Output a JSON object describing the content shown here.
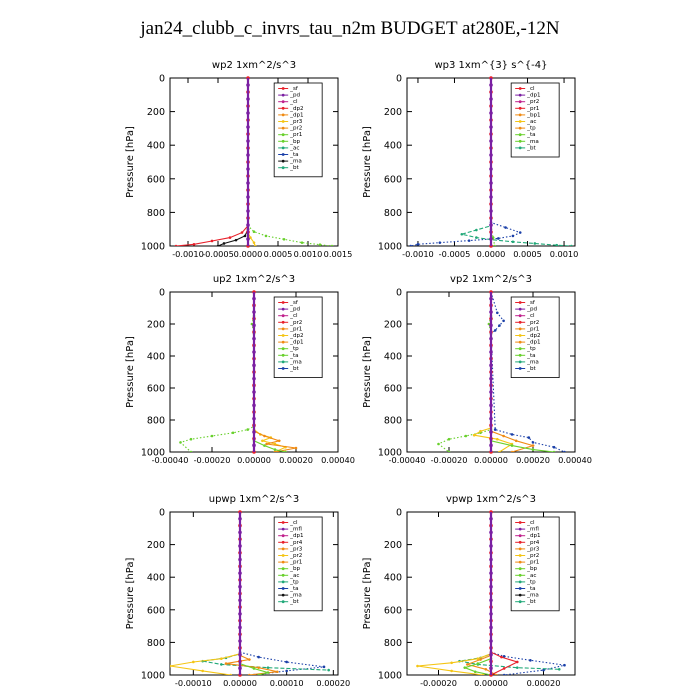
{
  "page": {
    "title": "jan24_clubb_c_invrs_tau_n2m  BUDGET at280E,-12N"
  },
  "colors": {
    "red": "#e8202a",
    "purple": "#7a1fa2",
    "orange": "#f08a12",
    "yellow": "#f4c515",
    "green": "#68d02c",
    "teal": "#20a878",
    "blue": "#1a3fa8",
    "cyan": "#29b8d8",
    "black": "#111111",
    "magenta": "#c0208c"
  },
  "chart_data": [
    {
      "type": "line",
      "title": "wp2   1xm^2/s^3",
      "ylabel": "Pressure  [hPa]",
      "ylim": [
        1000,
        0
      ],
      "xlim": [
        -0.0013,
        0.0015
      ],
      "xticks": [
        -0.001,
        -0.0005,
        0.0,
        0.0005,
        0.001,
        0.0015
      ],
      "xtick_labels": [
        "-0.0010",
        "-0.0005",
        "0.0000",
        "0.0005",
        "0.0010",
        "0.0015"
      ],
      "yticks": [
        0,
        200,
        400,
        600,
        800,
        1000
      ],
      "legend": [
        "_sf",
        "_pd",
        "_cl",
        "_dp2",
        "_dp1",
        "_pr3",
        "_pr2",
        "_pr1",
        "_bp",
        "_ac",
        "_ta",
        "_ma",
        "_bt"
      ],
      "series": [
        {
          "name": "_pr1",
          "color": "green",
          "style": "dot",
          "x": [
            0,
            0,
            0.0001,
            0.0003,
            0.0006,
            0.0009,
            0.0012,
            0.0014
          ],
          "y": [
            0,
            880,
            915,
            940,
            960,
            980,
            992,
            1000
          ]
        },
        {
          "name": "_dp1",
          "color": "red",
          "style": "line",
          "x": [
            0,
            0,
            -0.0001,
            -0.0003,
            -0.0006,
            -0.0009,
            -0.0012
          ],
          "y": [
            0,
            880,
            920,
            950,
            970,
            990,
            1000
          ]
        },
        {
          "name": "_ta",
          "color": "black",
          "style": "line",
          "x": [
            0,
            0,
            -5e-05,
            -0.0002,
            -0.0004,
            -0.0005
          ],
          "y": [
            0,
            900,
            940,
            965,
            985,
            1000
          ]
        },
        {
          "name": "_bp",
          "color": "yellow",
          "style": "line",
          "x": [
            0,
            0,
            4e-05,
            0.0001,
            0.00012
          ],
          "y": [
            0,
            920,
            950,
            980,
            1000
          ]
        },
        {
          "name": "_pd",
          "color": "purple",
          "style": "line",
          "x": [
            0,
            0,
            0
          ],
          "y": [
            0,
            500,
            1000
          ]
        }
      ]
    },
    {
      "type": "line",
      "title": "wp3   1xm^{3} s^{-4}",
      "ylabel": "Pressure  [hPa]",
      "ylim": [
        1000,
        0
      ],
      "xlim": [
        -0.00115,
        0.00115
      ],
      "xticks": [
        -0.001,
        -0.0005,
        0.0,
        0.0005,
        0.001
      ],
      "xtick_labels": [
        "-0.0010",
        "-0.0005",
        "0.0000",
        "0.0005",
        "0.0010"
      ],
      "yticks": [
        0,
        200,
        400,
        600,
        800,
        1000
      ],
      "legend": [
        "_cl",
        "_dp1",
        "_pr2",
        "_pr1",
        "_bp1",
        "_ac",
        "_tp",
        "_ta",
        "_ma",
        "_bt"
      ],
      "series": [
        {
          "name": "_tp",
          "color": "blue",
          "style": "dot",
          "x": [
            0,
            0,
            0.0002,
            0.0004,
            0.0003,
            0.0001,
            -0.0003,
            -0.0007,
            -0.001,
            -0.0011
          ],
          "y": [
            0,
            860,
            890,
            920,
            940,
            955,
            968,
            980,
            990,
            1000
          ]
        },
        {
          "name": "_ac",
          "color": "teal",
          "style": "dash",
          "x": [
            0,
            0,
            -0.0002,
            -0.0004,
            -0.0002,
            0,
            0.0003,
            0.0006,
            0.0009,
            0.0011
          ],
          "y": [
            0,
            880,
            905,
            930,
            950,
            962,
            975,
            985,
            995,
            1000
          ]
        },
        {
          "name": "_pr1",
          "color": "green",
          "style": "dot",
          "x": [
            0,
            0,
            3e-05,
            5e-05
          ],
          "y": [
            0,
            900,
            950,
            1000
          ]
        },
        {
          "name": "_cl",
          "color": "red",
          "style": "line",
          "x": [
            0,
            0,
            0
          ],
          "y": [
            0,
            500,
            1000
          ]
        }
      ]
    },
    {
      "type": "line",
      "title": "up2   1xm^2/s^3",
      "ylabel": "Pressure  [hPa]",
      "ylim": [
        1000,
        0
      ],
      "xlim": [
        -0.0004,
        0.0004
      ],
      "xticks": [
        -0.0004,
        -0.0002,
        0.0,
        0.0002,
        0.0004
      ],
      "xtick_labels": [
        "-0.00040",
        "-0.00020",
        "0.00000",
        "0.00020",
        "0.00040"
      ],
      "yticks": [
        0,
        200,
        400,
        600,
        800,
        1000
      ],
      "legend": [
        "_sf",
        "_pd",
        "_cl",
        "_pr2",
        "_pr1",
        "_dp2",
        "_dp1",
        "_tp",
        "_ta",
        "_ma",
        "_bt"
      ],
      "series": [
        {
          "name": "_pr1",
          "color": "green",
          "style": "dot",
          "x": [
            0,
            0,
            -1e-05,
            0,
            0,
            -3e-05,
            -0.0001,
            -0.0002,
            -0.0003,
            -0.00035,
            -0.0003
          ],
          "y": [
            0,
            150,
            200,
            260,
            840,
            860,
            880,
            900,
            920,
            940,
            1000
          ]
        },
        {
          "name": "_pr2",
          "color": "yellow",
          "style": "line",
          "x": [
            0,
            0,
            3e-05,
            8e-05,
            4e-05,
            0.0001,
            0.00015,
            0.0001
          ],
          "y": [
            0,
            860,
            890,
            910,
            930,
            950,
            970,
            1000
          ]
        },
        {
          "name": "_pr3",
          "color": "orange",
          "style": "line",
          "x": [
            0,
            0,
            5e-05,
            0.00012,
            6e-05,
            0.0002,
            0.0001
          ],
          "y": [
            0,
            870,
            900,
            930,
            950,
            975,
            1000
          ]
        },
        {
          "name": "_dp1",
          "color": "green",
          "style": "line",
          "x": [
            0,
            0,
            5e-05,
            0.0001,
            0.00015
          ],
          "y": [
            0,
            930,
            960,
            985,
            1000
          ]
        },
        {
          "name": "_cl",
          "color": "red",
          "style": "line",
          "x": [
            0,
            0,
            0
          ],
          "y": [
            0,
            500,
            1000
          ]
        }
      ]
    },
    {
      "type": "line",
      "title": "vp2   1xm^2/s^3",
      "ylabel": "Pressure  [hPa]",
      "ylim": [
        1000,
        0
      ],
      "xlim": [
        -0.0004,
        0.0004
      ],
      "xticks": [
        -0.0004,
        -0.0002,
        0.0,
        0.0002,
        0.0004
      ],
      "xtick_labels": [
        "-0.00040",
        "-0.00020",
        "0.00000",
        "0.00020",
        "0.00040"
      ],
      "yticks": [
        0,
        200,
        400,
        600,
        800,
        1000
      ],
      "legend": [
        "_sf",
        "_pd",
        "_cl",
        "_pr2",
        "_pr1",
        "_dp2",
        "_dp1",
        "_tp",
        "_ta",
        "_ma",
        "_bt"
      ],
      "series": [
        {
          "name": "_tp",
          "color": "blue",
          "style": "dot",
          "x": [
            0,
            3e-05,
            6e-05,
            4e-05,
            2e-05,
            0,
            2e-05,
            0.0001,
            0.00018,
            0.0002,
            0.0003,
            0.00035
          ],
          "y": [
            0,
            130,
            180,
            210,
            240,
            260,
            860,
            890,
            910,
            940,
            970,
            1000
          ]
        },
        {
          "name": "_pr1",
          "color": "green",
          "style": "dot",
          "x": [
            0,
            0,
            -1e-05,
            0,
            0,
            -5e-05,
            -0.00012,
            -0.0002,
            -0.00025,
            -0.0002
          ],
          "y": [
            0,
            150,
            200,
            260,
            860,
            880,
            900,
            920,
            950,
            1000
          ]
        },
        {
          "name": "_pr2",
          "color": "yellow",
          "style": "line",
          "x": [
            0,
            0,
            -5e-05,
            -8e-05,
            3e-05,
            0.0001,
            4e-05
          ],
          "y": [
            0,
            850,
            870,
            895,
            920,
            950,
            1000
          ]
        },
        {
          "name": "_pr3",
          "color": "orange",
          "style": "line",
          "x": [
            0,
            0,
            6e-05,
            0.00012,
            0.0002,
            0.0001
          ],
          "y": [
            0,
            870,
            900,
            930,
            960,
            1000
          ]
        },
        {
          "name": "_dp1",
          "color": "green",
          "style": "line",
          "x": [
            0,
            0,
            0.0001,
            0.0002,
            0.0003
          ],
          "y": [
            0,
            930,
            960,
            985,
            1000
          ]
        },
        {
          "name": "_cl",
          "color": "red",
          "style": "line",
          "x": [
            0,
            0,
            0
          ],
          "y": [
            0,
            500,
            1000
          ]
        }
      ]
    },
    {
      "type": "line",
      "title": "upwp   1xm^2/s^3",
      "ylabel": "Pressure  [hPa]",
      "ylim": [
        1000,
        0
      ],
      "xlim": [
        -0.00015,
        0.00021
      ],
      "xticks": [
        -0.0001,
        0.0,
        0.0001,
        0.0002
      ],
      "xtick_labels": [
        "-0.00010",
        "0.00000",
        "0.00010",
        "0.00020"
      ],
      "yticks": [
        0,
        200,
        400,
        600,
        800,
        1000
      ],
      "legend": [
        "_cl",
        "_mfl",
        "_dp1",
        "_pr4",
        "_pr3",
        "_pr2",
        "_pr1",
        "_bp",
        "_ac",
        "_tp",
        "_ta",
        "_ma",
        "_bt"
      ],
      "series": [
        {
          "name": "_tp",
          "color": "blue",
          "style": "dot",
          "x": [
            0,
            0,
            4e-05,
            0.0001,
            0.00018,
            0.0001,
            3e-05
          ],
          "y": [
            0,
            860,
            890,
            920,
            950,
            975,
            1000
          ]
        },
        {
          "name": "_ac",
          "color": "teal",
          "style": "dash",
          "x": [
            0,
            0,
            -3e-05,
            -8e-05,
            -4e-05,
            6e-05,
            0.00019
          ],
          "y": [
            0,
            870,
            895,
            915,
            935,
            955,
            970
          ]
        },
        {
          "name": "_pr1",
          "color": "yellow",
          "style": "line",
          "x": [
            0,
            0,
            -4e-05,
            -0.0001,
            -0.00015,
            -8e-05,
            -2e-05
          ],
          "y": [
            0,
            870,
            900,
            920,
            945,
            975,
            1000
          ]
        },
        {
          "name": "_pr2",
          "color": "orange",
          "style": "line",
          "x": [
            0,
            0,
            2e-05,
            -3e-05,
            4e-05,
            8e-05,
            2e-05
          ],
          "y": [
            0,
            880,
            905,
            930,
            955,
            980,
            1000
          ]
        },
        {
          "name": "_bp",
          "color": "green",
          "style": "line",
          "x": [
            0,
            0,
            3e-05,
            6e-05,
            4e-05
          ],
          "y": [
            0,
            930,
            960,
            985,
            1000
          ]
        },
        {
          "name": "_dp1",
          "color": "red",
          "style": "line",
          "x": [
            0,
            0,
            0
          ],
          "y": [
            0,
            500,
            1000
          ]
        },
        {
          "name": "_mfl",
          "color": "purple",
          "style": "line",
          "x": [
            0,
            0,
            0
          ],
          "y": [
            0,
            500,
            1000
          ]
        }
      ]
    },
    {
      "type": "line",
      "title": "vpwp   1xm^2/s^3",
      "ylabel": "Pressure  [hPa]",
      "ylim": [
        1000,
        0
      ],
      "xlim": [
        -0.00032,
        0.00032
      ],
      "xticks": [
        -0.0002,
        0.0,
        0.0002
      ],
      "xtick_labels": [
        "-0.00020",
        "0.00000",
        "0.00020"
      ],
      "yticks": [
        0,
        200,
        400,
        600,
        800,
        1000
      ],
      "legend": [
        "_cl",
        "_mfl",
        "_dp1",
        "_pr4",
        "_pr3",
        "_pr2",
        "_pr1",
        "_bp",
        "_ac",
        "_tp",
        "_ta",
        "_ma",
        "_bt"
      ],
      "series": [
        {
          "name": "_tp",
          "color": "blue",
          "style": "dot",
          "x": [
            0,
            0,
            5e-05,
            0.00015,
            0.00028,
            0.0002,
            5e-05
          ],
          "y": [
            0,
            860,
            885,
            910,
            940,
            970,
            1000
          ]
        },
        {
          "name": "_ac",
          "color": "teal",
          "style": "dash",
          "x": [
            0,
            0,
            -4e-05,
            -0.00012,
            -5e-05,
            0.0001,
            0.00026
          ],
          "y": [
            0,
            870,
            895,
            915,
            935,
            955,
            965
          ]
        },
        {
          "name": "_pr1",
          "color": "yellow",
          "style": "line",
          "x": [
            0,
            0,
            -5e-05,
            -0.00015,
            -0.00028,
            -0.00015,
            -3e-05
          ],
          "y": [
            0,
            870,
            900,
            925,
            945,
            975,
            1000
          ]
        },
        {
          "name": "_pr2",
          "color": "orange",
          "style": "line",
          "x": [
            0,
            0,
            -4e-05,
            -9e-05,
            -2e-05,
            2e-05
          ],
          "y": [
            0,
            880,
            905,
            935,
            965,
            1000
          ]
        },
        {
          "name": "_bp",
          "color": "green",
          "style": "line",
          "x": [
            0,
            0,
            -5e-05,
            -0.0001,
            -6e-05,
            0
          ],
          "y": [
            0,
            900,
            930,
            955,
            980,
            1000
          ]
        },
        {
          "name": "_dp1",
          "color": "red",
          "style": "line",
          "x": [
            0,
            0,
            4e-05,
            0.0001,
            5e-05,
            0
          ],
          "y": [
            0,
            860,
            890,
            920,
            960,
            1000
          ]
        },
        {
          "name": "_mfl",
          "color": "purple",
          "style": "line",
          "x": [
            0,
            0,
            0
          ],
          "y": [
            0,
            500,
            1000
          ]
        }
      ]
    }
  ]
}
